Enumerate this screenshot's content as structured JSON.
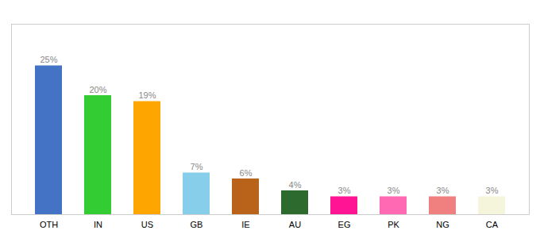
{
  "chart_data": {
    "type": "bar",
    "categories": [
      "OTH",
      "IN",
      "US",
      "GB",
      "IE",
      "AU",
      "EG",
      "PK",
      "NG",
      "CA"
    ],
    "values": [
      25,
      20,
      19,
      7,
      6,
      4,
      3,
      3,
      3,
      3
    ],
    "value_labels": [
      "25%",
      "20%",
      "19%",
      "7%",
      "6%",
      "4%",
      "3%",
      "3%",
      "3%",
      "3%"
    ],
    "colors": [
      "#4472c4",
      "#33cc33",
      "#ffa500",
      "#87ceeb",
      "#b8621a",
      "#2d6a2d",
      "#ff1493",
      "#ff69b4",
      "#f08080",
      "#f5f5dc"
    ],
    "ylim": [
      0,
      32
    ],
    "data_labels": true,
    "tick_labels": "x"
  }
}
